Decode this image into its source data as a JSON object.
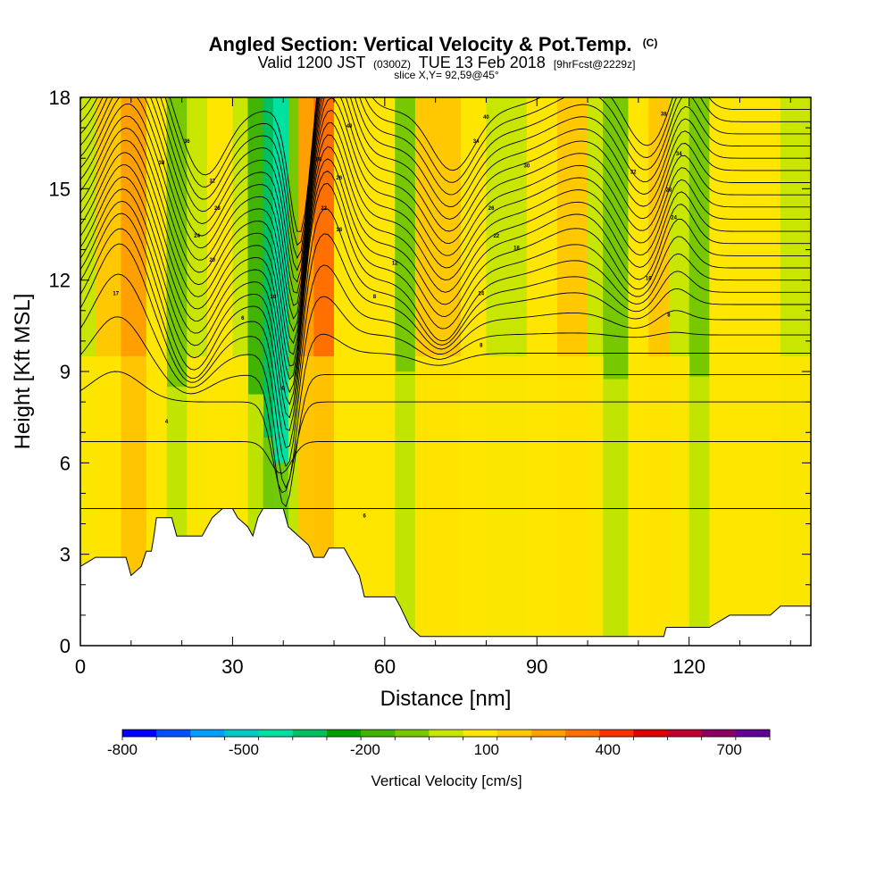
{
  "chart_data": {
    "type": "heatmap",
    "title": "Angled Section: Vertical Velocity & Pot.Temp.",
    "title_mark": "(C)",
    "subtitle_parts": {
      "prefix": "Valid 1200 JST",
      "utc": "(0300Z)",
      "date": "TUE 13 Feb 2018",
      "fcst": "[9hrFcst@2229z]"
    },
    "slice_text": "slice X,Y= 92,59@45°",
    "xlabel": "Distance [nm]",
    "ylabel": "Height [Kft MSL]",
    "xlim": [
      0,
      144
    ],
    "ylim": [
      0,
      18
    ],
    "xticks": [
      0,
      30,
      60,
      90,
      120
    ],
    "yticks": [
      0,
      3,
      6,
      9,
      12,
      15,
      18
    ],
    "colorbar": {
      "title": "Vertical Velocity [cm/s]",
      "tick_labels": [
        "-800",
        "-500",
        "-200",
        "100",
        "400",
        "700"
      ],
      "tick_values": [
        -800,
        -500,
        -200,
        100,
        400,
        700
      ],
      "range": [
        -800,
        800
      ],
      "colors": [
        "#0000ff",
        "#0050ff",
        "#00a0ff",
        "#00c8c8",
        "#00e0a0",
        "#00c060",
        "#00a000",
        "#40b400",
        "#78c800",
        "#c8e600",
        "#ffe600",
        "#ffc800",
        "#ffa000",
        "#ff7000",
        "#ff3000",
        "#e00000",
        "#c00030",
        "#8c0064",
        "#640096"
      ]
    },
    "velocity_bands": [
      {
        "x0": 0,
        "x1": 3,
        "value": 40
      },
      {
        "x0": 3,
        "x1": 8,
        "value": 180
      },
      {
        "x0": 8,
        "x1": 13,
        "value": 260
      },
      {
        "x0": 13,
        "x1": 17,
        "value": 60
      },
      {
        "x0": 17,
        "x1": 21,
        "value": -120
      },
      {
        "x0": 21,
        "x1": 25,
        "value": 20
      },
      {
        "x0": 25,
        "x1": 30,
        "value": 110
      },
      {
        "x0": 30,
        "x1": 33,
        "value": 30
      },
      {
        "x0": 33,
        "x1": 36,
        "value": -150
      },
      {
        "x0": 36,
        "x1": 38,
        "value": -320
      },
      {
        "x0": 38,
        "x1": 41,
        "value": -420
      },
      {
        "x0": 41,
        "x1": 43,
        "value": -80
      },
      {
        "x0": 43,
        "x1": 46,
        "value": 250
      },
      {
        "x0": 46,
        "x1": 50,
        "value": 330
      },
      {
        "x0": 50,
        "x1": 54,
        "value": 120
      },
      {
        "x0": 54,
        "x1": 58,
        "value": 60
      },
      {
        "x0": 58,
        "x1": 62,
        "value": 110
      },
      {
        "x0": 62,
        "x1": 66,
        "value": -60
      },
      {
        "x0": 66,
        "x1": 70,
        "value": 140
      },
      {
        "x0": 70,
        "x1": 75,
        "value": 210
      },
      {
        "x0": 75,
        "x1": 80,
        "value": 120
      },
      {
        "x0": 80,
        "x1": 88,
        "value": 40
      },
      {
        "x0": 88,
        "x1": 94,
        "value": 110
      },
      {
        "x0": 94,
        "x1": 100,
        "value": 130
      },
      {
        "x0": 100,
        "x1": 103,
        "value": 30
      },
      {
        "x0": 103,
        "x1": 108,
        "value": -90
      },
      {
        "x0": 108,
        "x1": 112,
        "value": 50
      },
      {
        "x0": 112,
        "x1": 116,
        "value": 180
      },
      {
        "x0": 116,
        "x1": 120,
        "value": 40
      },
      {
        "x0": 120,
        "x1": 124,
        "value": -80
      },
      {
        "x0": 124,
        "x1": 130,
        "value": 60
      },
      {
        "x0": 130,
        "x1": 138,
        "value": 110
      },
      {
        "x0": 138,
        "x1": 144,
        "value": 30
      }
    ],
    "low_level_yellow_top_kft": 9.5,
    "terrain_kft": [
      [
        0,
        2.6
      ],
      [
        3,
        2.9
      ],
      [
        9,
        2.9
      ],
      [
        10,
        2.3
      ],
      [
        12,
        2.6
      ],
      [
        13,
        3.1
      ],
      [
        14,
        3.1
      ],
      [
        14.5,
        3.6
      ],
      [
        15,
        4.2
      ],
      [
        18,
        4.2
      ],
      [
        19,
        3.6
      ],
      [
        24,
        3.6
      ],
      [
        25,
        3.9
      ],
      [
        26,
        4.2
      ],
      [
        28,
        4.5
      ],
      [
        30,
        4.5
      ],
      [
        31,
        4.2
      ],
      [
        33,
        3.9
      ],
      [
        34,
        3.6
      ],
      [
        35,
        4.2
      ],
      [
        36,
        4.5
      ],
      [
        40,
        4.5
      ],
      [
        41,
        3.9
      ],
      [
        43,
        3.6
      ],
      [
        45,
        3.3
      ],
      [
        46,
        2.9
      ],
      [
        48,
        2.9
      ],
      [
        49,
        3.2
      ],
      [
        52,
        3.2
      ],
      [
        53,
        2.9
      ],
      [
        55,
        2.3
      ],
      [
        56,
        1.6
      ],
      [
        62,
        1.6
      ],
      [
        63,
        1.3
      ],
      [
        65,
        0.6
      ],
      [
        67,
        0.3
      ],
      [
        82,
        0.3
      ],
      [
        115,
        0.3
      ],
      [
        115.5,
        0.6
      ],
      [
        124,
        0.6
      ],
      [
        128,
        1.0
      ],
      [
        136,
        1.0
      ],
      [
        138,
        1.3
      ],
      [
        144,
        1.3
      ]
    ],
    "theta_contour_base_kft": [
      4.5,
      6.7,
      8.0,
      8.9,
      9.6,
      10.2,
      10.7,
      11.2,
      11.6,
      12.0,
      12.4,
      12.8,
      13.2,
      13.6,
      14.0,
      14.4,
      14.8,
      15.2,
      15.6,
      16.0,
      16.4,
      16.8,
      17.2,
      17.6
    ],
    "wave_components": [
      {
        "center_nm": 7,
        "width_nm": 7,
        "amplitude_kft": 3.0,
        "height_onset_kft": 7
      },
      {
        "center_nm": 21,
        "width_nm": 6,
        "amplitude_kft": -2.2,
        "height_onset_kft": 8
      },
      {
        "center_nm": 40,
        "width_nm": 3,
        "amplitude_kft": -4.5,
        "height_onset_kft": 6
      },
      {
        "center_nm": 47,
        "width_nm": 5,
        "amplitude_kft": 3.2,
        "height_onset_kft": 9
      },
      {
        "center_nm": 70,
        "width_nm": 6,
        "amplitude_kft": -2.0,
        "height_onset_kft": 9
      },
      {
        "center_nm": 97,
        "width_nm": 10,
        "amplitude_kft": 1.0,
        "height_onset_kft": 10
      },
      {
        "center_nm": 108,
        "width_nm": 6,
        "amplitude_kft": -1.5,
        "height_onset_kft": 10
      },
      {
        "center_nm": 116,
        "width_nm": 4,
        "amplitude_kft": 1.5,
        "height_onset_kft": 10
      }
    ],
    "contour_labels": [
      {
        "x": 7,
        "y": 11.5,
        "text": "17"
      },
      {
        "x": 16,
        "y": 15.8,
        "text": "38"
      },
      {
        "x": 21,
        "y": 16.5,
        "text": "36"
      },
      {
        "x": 26,
        "y": 15.2,
        "text": "32"
      },
      {
        "x": 27,
        "y": 14.3,
        "text": "28"
      },
      {
        "x": 23,
        "y": 13.4,
        "text": "24"
      },
      {
        "x": 26,
        "y": 12.6,
        "text": "20"
      },
      {
        "x": 32,
        "y": 10.7,
        "text": "6"
      },
      {
        "x": 38,
        "y": 11.4,
        "text": "10"
      },
      {
        "x": 40,
        "y": 8.4,
        "text": "0"
      },
      {
        "x": 47,
        "y": 15.9,
        "text": "30"
      },
      {
        "x": 51,
        "y": 15.3,
        "text": "26"
      },
      {
        "x": 48,
        "y": 14.3,
        "text": "22"
      },
      {
        "x": 51,
        "y": 13.6,
        "text": "18"
      },
      {
        "x": 53,
        "y": 17.0,
        "text": "40"
      },
      {
        "x": 62,
        "y": 12.5,
        "text": "12"
      },
      {
        "x": 58,
        "y": 11.4,
        "text": "8"
      },
      {
        "x": 80,
        "y": 17.3,
        "text": "40"
      },
      {
        "x": 78,
        "y": 16.5,
        "text": "34"
      },
      {
        "x": 88,
        "y": 15.7,
        "text": "30"
      },
      {
        "x": 81,
        "y": 14.3,
        "text": "26"
      },
      {
        "x": 82,
        "y": 13.4,
        "text": "22"
      },
      {
        "x": 86,
        "y": 13.0,
        "text": "18"
      },
      {
        "x": 79,
        "y": 11.5,
        "text": "14"
      },
      {
        "x": 79,
        "y": 9.8,
        "text": "8"
      },
      {
        "x": 109,
        "y": 15.5,
        "text": "32"
      },
      {
        "x": 115,
        "y": 17.4,
        "text": "38"
      },
      {
        "x": 118,
        "y": 16.1,
        "text": "34"
      },
      {
        "x": 116,
        "y": 14.9,
        "text": "28"
      },
      {
        "x": 117,
        "y": 14.0,
        "text": "24"
      },
      {
        "x": 112,
        "y": 12.0,
        "text": "16"
      },
      {
        "x": 116,
        "y": 10.8,
        "text": "8"
      },
      {
        "x": 56,
        "y": 4.2,
        "text": "6"
      },
      {
        "x": 17,
        "y": 7.3,
        "text": "4"
      }
    ]
  }
}
